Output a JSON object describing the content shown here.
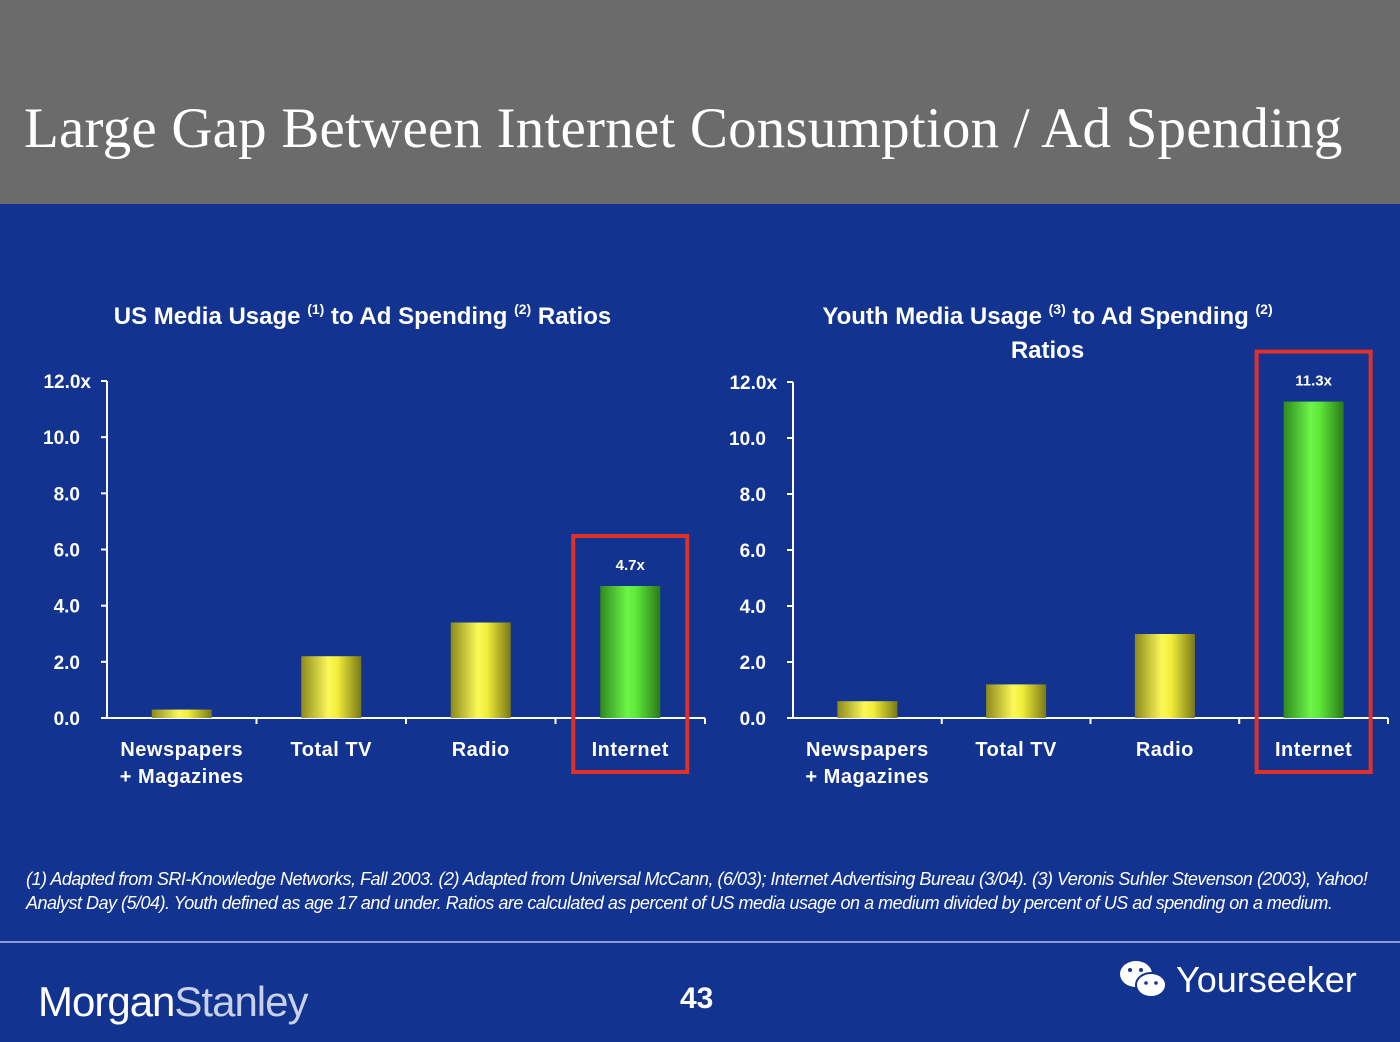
{
  "header": {
    "title": "Large Gap Between Internet Consumption / Ad Spending"
  },
  "chart_data": [
    {
      "type": "bar",
      "title_parts": [
        {
          "text": "US Media Usage "
        },
        {
          "sup": "(1)"
        },
        {
          "text": " to Ad Spending "
        },
        {
          "sup": "(2)"
        },
        {
          "text": " Ratios"
        }
      ],
      "categories": [
        "Newspapers\n+ Magazines",
        "Total TV",
        "Radio",
        "Internet"
      ],
      "values": [
        0.3,
        2.2,
        3.4,
        4.7
      ],
      "data_labels": [
        "",
        "",
        "",
        "4.7x"
      ],
      "highlighted": "Internet",
      "yticks": [
        "0.0",
        "2.0",
        "4.0",
        "6.0",
        "8.0",
        "10.0",
        "12.0x"
      ],
      "ylim": [
        0,
        12
      ],
      "grid": false,
      "colors": {
        "bar": "#f2ef3a",
        "highlight": "#5ee83a",
        "box": "#e0302a"
      }
    },
    {
      "type": "bar",
      "title_parts": [
        {
          "text": "Youth Media Usage "
        },
        {
          "sup": "(3)"
        },
        {
          "text": " to Ad Spending "
        },
        {
          "sup": "(2)"
        },
        {
          "text": "\nRatios"
        }
      ],
      "categories": [
        "Newspapers\n+ Magazines",
        "Total TV",
        "Radio",
        "Internet"
      ],
      "values": [
        0.6,
        1.2,
        3.0,
        11.3
      ],
      "data_labels": [
        "",
        "",
        "",
        "11.3x"
      ],
      "highlighted": "Internet",
      "yticks": [
        "0.0",
        "2.0",
        "4.0",
        "6.0",
        "8.0",
        "10.0",
        "12.0x"
      ],
      "ylim": [
        0,
        12
      ],
      "grid": false,
      "colors": {
        "bar": "#f2ef3a",
        "highlight": "#5ee83a",
        "box": "#e0302a"
      }
    }
  ],
  "footnote": "(1) Adapted from SRI-Knowledge Networks, Fall 2003.  (2) Adapted from Universal McCann, (6/03); Internet Advertising Bureau (3/04). (3) Veronis Suhler Stevenson (2003), Yahoo! Analyst Day (5/04).  Youth defined as age 17 and under.  Ratios are calculated as percent of US media usage on a medium divided by percent of US ad spending on a medium.",
  "footer": {
    "logo_part1": "Morgan",
    "logo_part2": "Stanley",
    "page_number": "43",
    "watermark": "Yourseeker",
    "watermark_icon": "wechat-icon"
  }
}
